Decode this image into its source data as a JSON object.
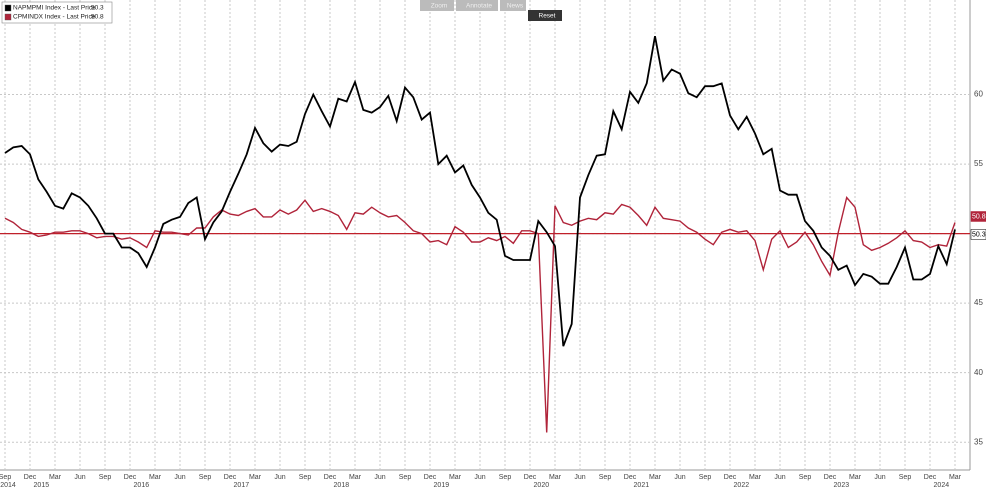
{
  "chart_data": {
    "type": "line",
    "categories": [
      "Sep",
      null,
      null,
      "Dec",
      null,
      null,
      "Mar",
      null,
      null,
      "Jun",
      null,
      null,
      "Sep",
      null,
      null,
      "Dec",
      null,
      null,
      "Mar",
      null,
      null,
      "Jun",
      null,
      null,
      "Sep",
      null,
      null,
      "Dec",
      null,
      null,
      "Mar",
      null,
      null,
      "Jun",
      null,
      null,
      "Sep",
      null,
      null,
      "Dec",
      null,
      null,
      "Mar",
      null,
      null,
      "Jun",
      null,
      null,
      "Sep",
      null,
      null,
      "Dec",
      null,
      null,
      "Mar",
      null,
      null,
      "Jun",
      null,
      null,
      "Sep",
      null,
      null,
      "Dec",
      null,
      null,
      "Mar",
      null,
      null,
      "Jun",
      null,
      null,
      "Sep",
      null,
      null,
      "Dec",
      null,
      null,
      "Mar",
      null,
      null,
      "Jun",
      null,
      null,
      "Sep",
      null,
      null,
      "Dec",
      null,
      null,
      "Mar",
      null,
      null,
      "Jun",
      null,
      null,
      "Sep",
      null,
      null,
      "Dec",
      null,
      null,
      "Mar",
      null,
      null,
      "Jun",
      null,
      null,
      "Sep",
      null,
      null,
      "Dec",
      null,
      null,
      "Mar"
    ],
    "years": [
      "2014",
      null,
      null,
      null,
      "2015",
      null,
      null,
      null,
      null,
      null,
      null,
      null,
      null,
      null,
      null,
      null,
      "2016",
      null,
      null,
      null,
      null,
      null,
      null,
      null,
      null,
      null,
      null,
      null,
      "2017",
      null,
      null,
      null,
      null,
      null,
      null,
      null,
      null,
      null,
      null,
      null,
      "2018",
      null,
      null,
      null,
      null,
      null,
      null,
      null,
      null,
      null,
      null,
      null,
      "2019",
      null,
      null,
      null,
      null,
      null,
      null,
      null,
      null,
      null,
      null,
      null,
      "2020",
      null,
      null,
      null,
      null,
      null,
      null,
      null,
      null,
      null,
      null,
      null,
      "2021",
      null,
      null,
      null,
      null,
      null,
      null,
      null,
      null,
      null,
      null,
      null,
      "2022",
      null,
      null,
      null,
      null,
      null,
      null,
      null,
      null,
      null,
      null,
      null,
      "2023",
      null,
      null,
      null,
      null,
      null,
      null,
      null,
      null,
      null,
      null,
      null,
      "2024",
      null,
      null
    ],
    "series": [
      {
        "name": "NAPMPMI Index - Last Price",
        "color": "#000000",
        "values": [
          55.8,
          56.2,
          56.3,
          55.7,
          53.9,
          53.0,
          52.0,
          51.8,
          52.9,
          52.6,
          52.0,
          51.1,
          50.0,
          50.0,
          49.0,
          49.0,
          48.6,
          47.6,
          49.0,
          50.7,
          51.0,
          51.2,
          52.2,
          52.6,
          49.6,
          50.8,
          51.6,
          53.0,
          54.3,
          55.7,
          57.6,
          56.5,
          55.9,
          56.4,
          56.3,
          56.6,
          58.6,
          60.0,
          58.8,
          57.7,
          59.7,
          59.5,
          60.9,
          58.9,
          58.7,
          59.1,
          59.9,
          58.1,
          60.5,
          59.8,
          58.2,
          58.7,
          55.0,
          55.6,
          54.4,
          54.9,
          53.5,
          52.6,
          51.5,
          51.0,
          48.4,
          48.1,
          48.1,
          48.1,
          50.9,
          50.1,
          49.1,
          41.9,
          43.5,
          52.6,
          54.2,
          55.6,
          55.7,
          58.8,
          57.5,
          60.2,
          59.4,
          60.8,
          64.2,
          61.0,
          61.8,
          61.5,
          60.1,
          59.8,
          60.6,
          60.6,
          60.8,
          58.5,
          57.5,
          58.4,
          57.2,
          55.7,
          56.1,
          53.1,
          52.8,
          52.8,
          50.9,
          50.2,
          49.0,
          48.4,
          47.4,
          47.7,
          46.3,
          47.1,
          46.9,
          46.4,
          46.4,
          47.6,
          49.0,
          46.7,
          46.7,
          47.1,
          49.1,
          47.8,
          50.3
        ]
      },
      {
        "name": "CPMINDX Index - Last Price",
        "color": "#b0243a",
        "values": [
          51.1,
          50.8,
          50.3,
          50.1,
          49.8,
          49.9,
          50.1,
          50.1,
          50.2,
          50.2,
          50.0,
          49.7,
          49.8,
          49.8,
          49.6,
          49.7,
          49.4,
          49.0,
          50.2,
          50.1,
          50.1,
          50.0,
          49.9,
          50.4,
          50.4,
          51.2,
          51.7,
          51.4,
          51.3,
          51.6,
          51.8,
          51.2,
          51.2,
          51.7,
          51.4,
          51.7,
          52.4,
          51.6,
          51.8,
          51.6,
          51.3,
          50.3,
          51.5,
          51.4,
          51.9,
          51.5,
          51.2,
          51.3,
          50.8,
          50.2,
          50.0,
          49.4,
          49.5,
          49.2,
          50.5,
          50.1,
          49.4,
          49.4,
          49.7,
          49.5,
          49.8,
          49.3,
          50.2,
          50.2,
          50.0,
          35.7,
          52.0,
          50.8,
          50.6,
          50.9,
          51.1,
          51.0,
          51.5,
          51.4,
          52.1,
          51.9,
          51.3,
          50.6,
          51.9,
          51.1,
          51.0,
          50.9,
          50.4,
          50.1,
          49.6,
          49.2,
          50.1,
          50.3,
          50.1,
          50.2,
          49.5,
          47.4,
          49.6,
          50.2,
          49.0,
          49.4,
          50.1,
          49.2,
          48.0,
          47.0,
          50.1,
          52.6,
          51.9,
          49.2,
          48.8,
          49.0,
          49.3,
          49.7,
          50.2,
          49.5,
          49.4,
          49.0,
          49.2,
          49.1,
          50.8
        ]
      }
    ],
    "reference_line": {
      "value": 50,
      "color": "#c0202a"
    },
    "ylim": [
      33,
      66.8
    ],
    "yticks": [
      35,
      40,
      45,
      50,
      55,
      60
    ],
    "grid": true,
    "toolbar": [
      "Zoom",
      "Annotate",
      "News",
      "Reset"
    ]
  }
}
